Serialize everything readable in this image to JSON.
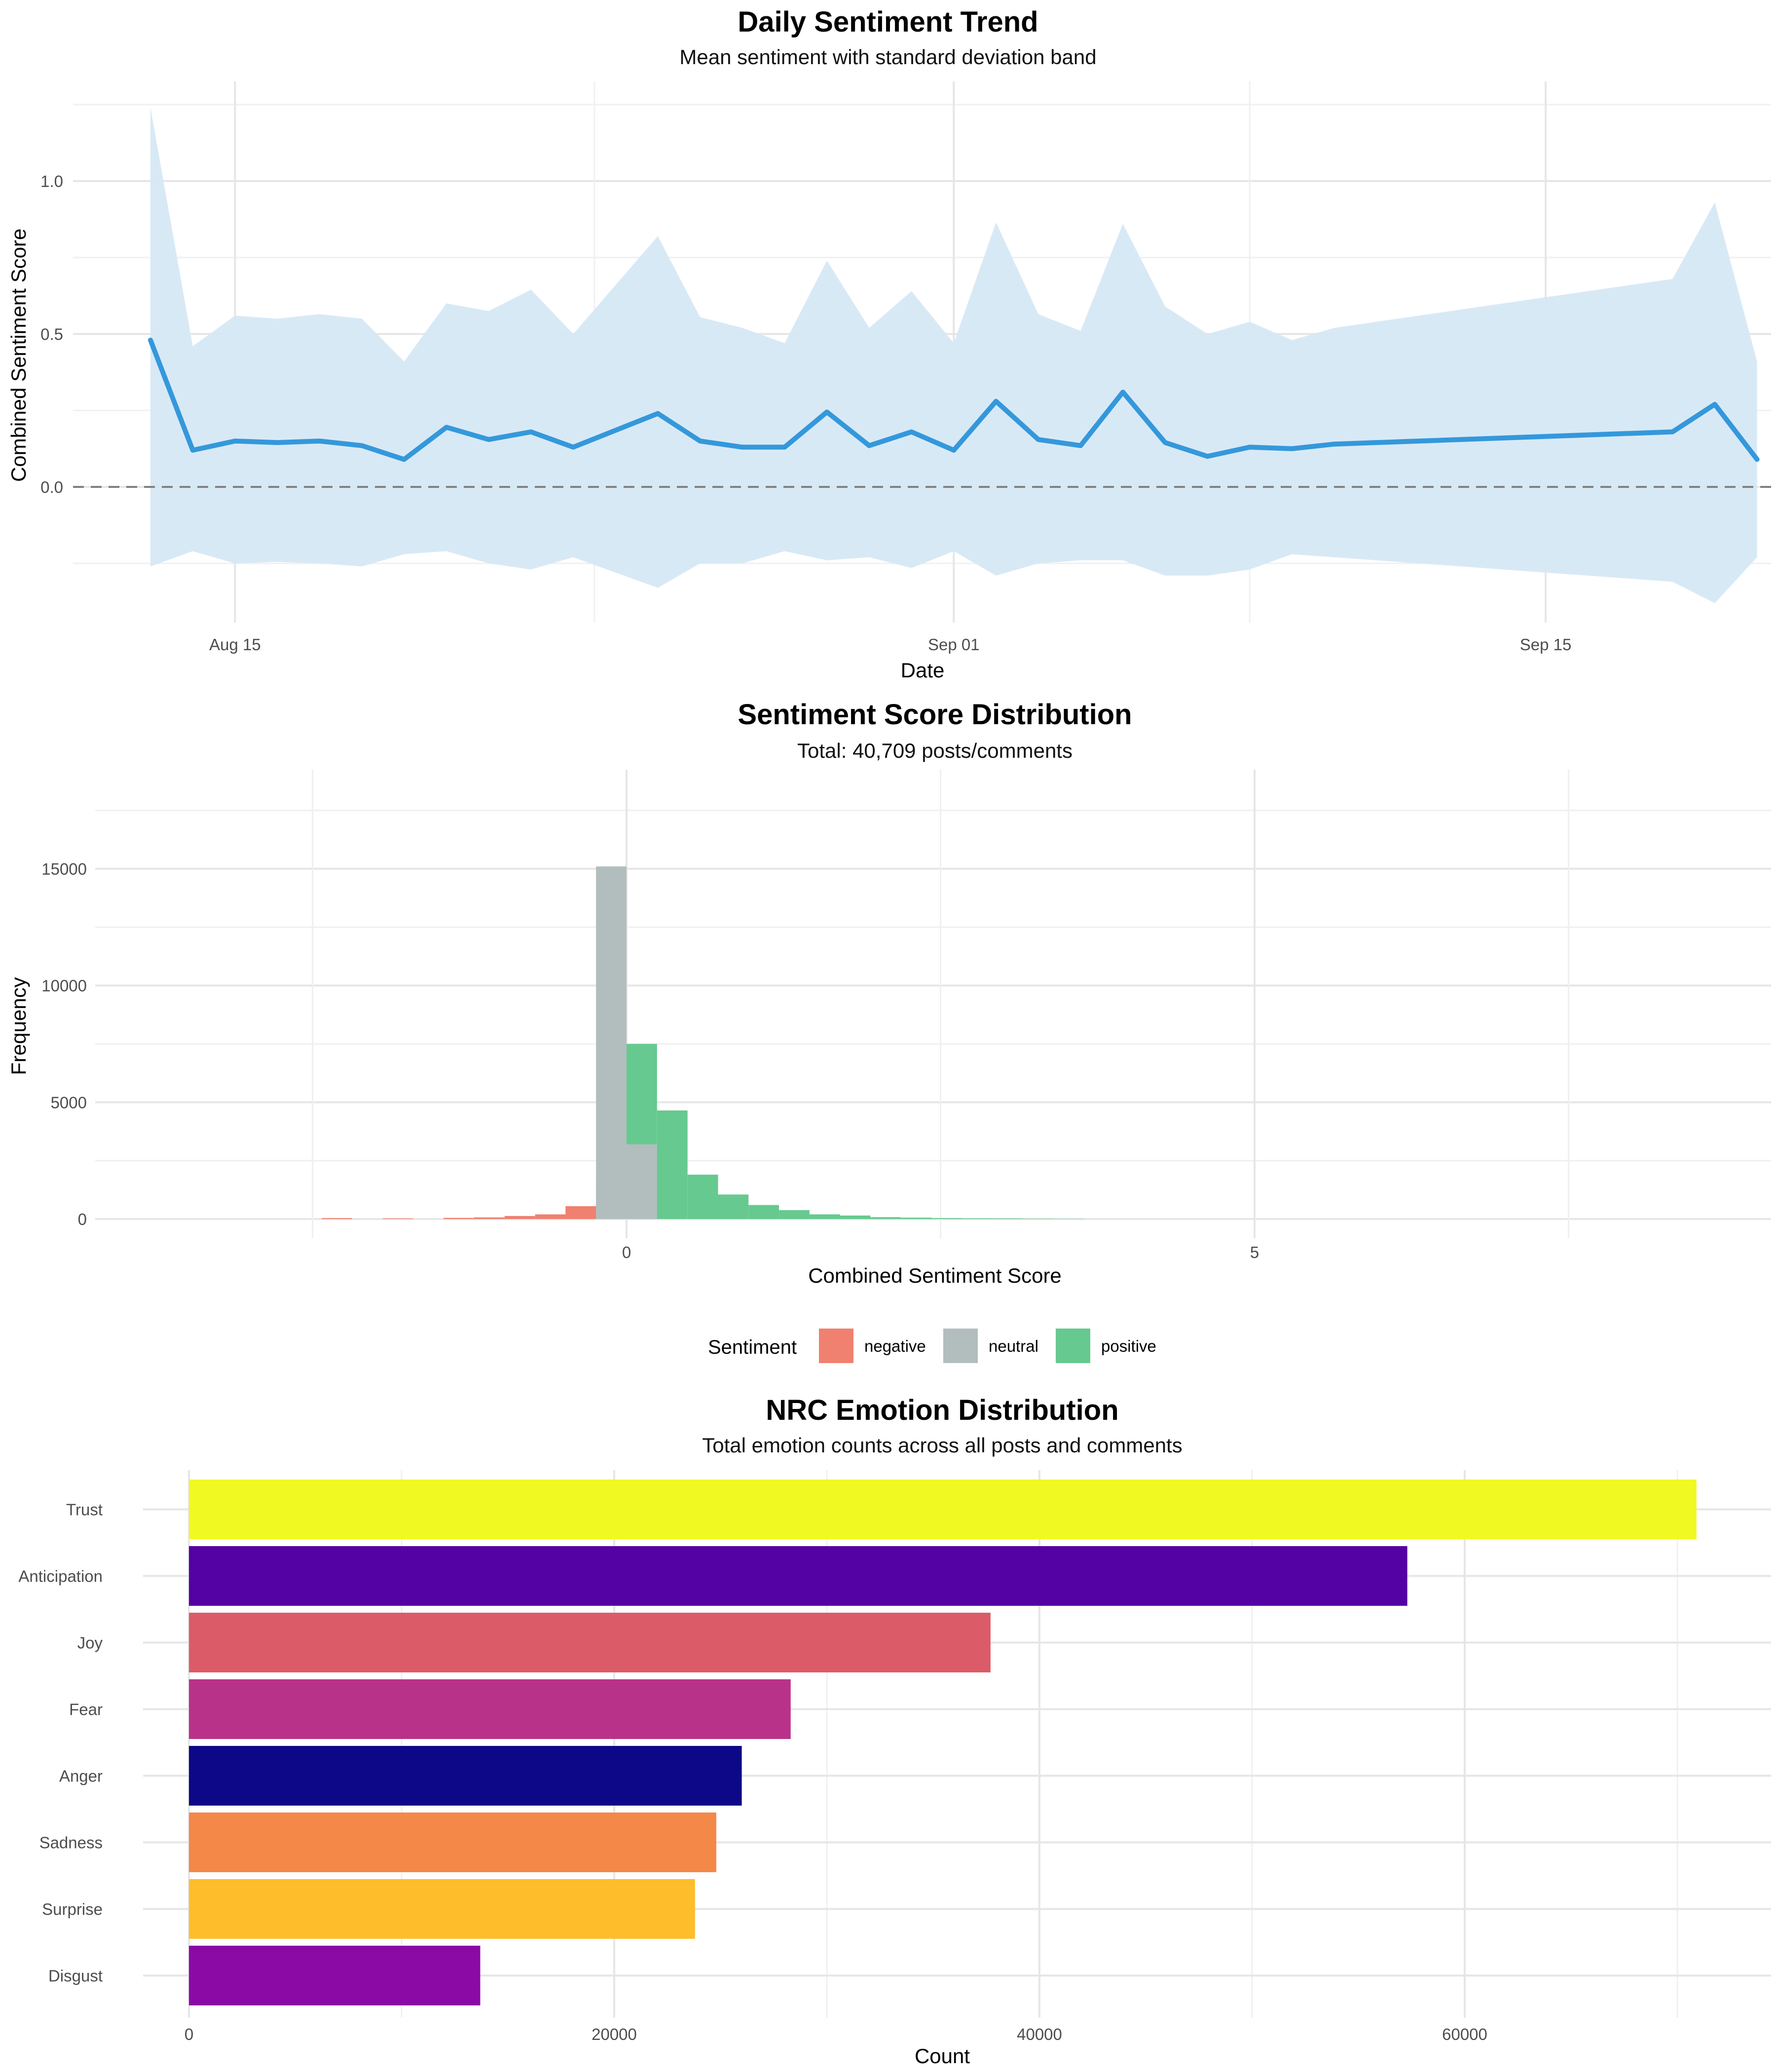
{
  "chart_data": [
    {
      "type": "line",
      "title": "Daily Sentiment Trend",
      "subtitle": "Mean sentiment with standard deviation band",
      "xlabel": "Date",
      "ylabel": "Combined Sentiment Score",
      "x_tick_labels": [
        "Aug 15",
        "Sep 01",
        "Sep 15"
      ],
      "y_tick_labels": [
        "0.0",
        "0.5",
        "1.0"
      ],
      "ylim": [
        -0.4,
        1.25
      ],
      "reference_line": 0,
      "grid": true,
      "colors": {
        "line": "#3498db",
        "band": "#d6e8f6",
        "reference": "#808080"
      },
      "series": [
        {
          "x": [
            "2024-08-13",
            "2024-08-14",
            "2024-08-15",
            "2024-08-16",
            "2024-08-17",
            "2024-08-18",
            "2024-08-19",
            "2024-08-20",
            "2024-08-21",
            "2024-08-22",
            "2024-08-23",
            "2024-08-25",
            "2024-08-26",
            "2024-08-27",
            "2024-08-28",
            "2024-08-29",
            "2024-08-30",
            "2024-08-31",
            "2024-09-01",
            "2024-09-02",
            "2024-09-03",
            "2024-09-04",
            "2024-09-05",
            "2024-09-06",
            "2024-09-07",
            "2024-09-08",
            "2024-09-09",
            "2024-09-10",
            "2024-09-18",
            "2024-09-19",
            "2024-09-20"
          ],
          "mean": [
            0.48,
            0.12,
            0.15,
            0.145,
            0.15,
            0.135,
            0.09,
            0.195,
            0.155,
            0.18,
            0.13,
            0.24,
            0.15,
            0.13,
            0.13,
            0.245,
            0.135,
            0.18,
            0.12,
            0.28,
            0.155,
            0.135,
            0.31,
            0.145,
            0.1,
            0.13,
            0.125,
            0.14,
            0.18,
            0.27,
            0.09
          ],
          "upper": [
            1.24,
            0.46,
            0.56,
            0.55,
            0.565,
            0.55,
            0.41,
            0.6,
            0.575,
            0.645,
            0.5,
            0.82,
            0.555,
            0.52,
            0.47,
            0.74,
            0.52,
            0.64,
            0.47,
            0.865,
            0.565,
            0.51,
            0.86,
            0.59,
            0.5,
            0.54,
            0.48,
            0.52,
            0.68,
            0.93,
            0.41
          ],
          "lower": [
            -0.26,
            -0.21,
            -0.25,
            -0.245,
            -0.25,
            -0.26,
            -0.22,
            -0.21,
            -0.25,
            -0.27,
            -0.23,
            -0.33,
            -0.25,
            -0.25,
            -0.21,
            -0.24,
            -0.23,
            -0.265,
            -0.21,
            -0.29,
            -0.25,
            -0.24,
            -0.24,
            -0.29,
            -0.29,
            -0.27,
            -0.22,
            -0.23,
            -0.31,
            -0.38,
            -0.23
          ]
        }
      ]
    },
    {
      "type": "bar",
      "subtype": "histogram",
      "title": "Sentiment Score Distribution",
      "subtitle": "Total: 40,709 posts/comments",
      "xlabel": "Combined Sentiment Score",
      "ylabel": "Frequency",
      "x_tick_labels": [
        "0",
        "5"
      ],
      "y_tick_labels": [
        "0",
        "5000",
        "10000",
        "15000"
      ],
      "xlim": [
        -4.2,
        9.2
      ],
      "ylim": [
        -750,
        18900
      ],
      "bin_width": 0.2428,
      "grid": true,
      "legend": {
        "title": "Sentiment",
        "position": "bottom",
        "items": [
          "negative",
          "neutral",
          "positive"
        ]
      },
      "colors": {
        "negative": "#f08070",
        "neutral": "#b2bebe",
        "positive": "#66c98f"
      },
      "series": [
        {
          "name": "negative",
          "bin_starts": [
            -2.428,
            -1.942,
            -1.457,
            -1.214,
            -0.971,
            -0.728,
            -0.486,
            -0.243,
            0.0
          ],
          "values": [
            40,
            25,
            50,
            70,
            130,
            200,
            550,
            1550,
            2950
          ]
        },
        {
          "name": "neutral",
          "bin_starts": [
            -0.243
          ],
          "values": [
            15100
          ]
        },
        {
          "name": "positive",
          "bin_starts": [
            0.0,
            0.243,
            0.486,
            0.728,
            0.971,
            1.214,
            1.457,
            1.699,
            1.942,
            2.185,
            2.428,
            2.671,
            2.914,
            3.157,
            3.399
          ],
          "values": [
            7500,
            4650,
            1900,
            1050,
            600,
            380,
            200,
            150,
            80,
            60,
            40,
            30,
            25,
            15,
            10
          ]
        },
        {
          "name": "neutral",
          "bin_starts": [
            0.0
          ],
          "values": [
            3200
          ]
        }
      ]
    },
    {
      "type": "bar",
      "orientation": "horizontal",
      "title": "NRC Emotion Distribution",
      "subtitle": "Total emotion counts across all posts and comments",
      "xlabel": "Count",
      "ylabel": "",
      "x_tick_labels": [
        "0",
        "20000",
        "40000",
        "60000"
      ],
      "xlim": [
        -2500,
        74500
      ],
      "grid": true,
      "categories": [
        "Trust",
        "Anticipation",
        "Joy",
        "Fear",
        "Anger",
        "Sadness",
        "Surprise",
        "Disgust"
      ],
      "values": [
        70900,
        57300,
        37700,
        28300,
        26000,
        24800,
        23800,
        13700
      ],
      "colors": [
        "#f0f921",
        "#5402a3",
        "#db5c68",
        "#b93289",
        "#0d0887",
        "#f48849",
        "#febd2a",
        "#8b0aa5"
      ]
    }
  ]
}
